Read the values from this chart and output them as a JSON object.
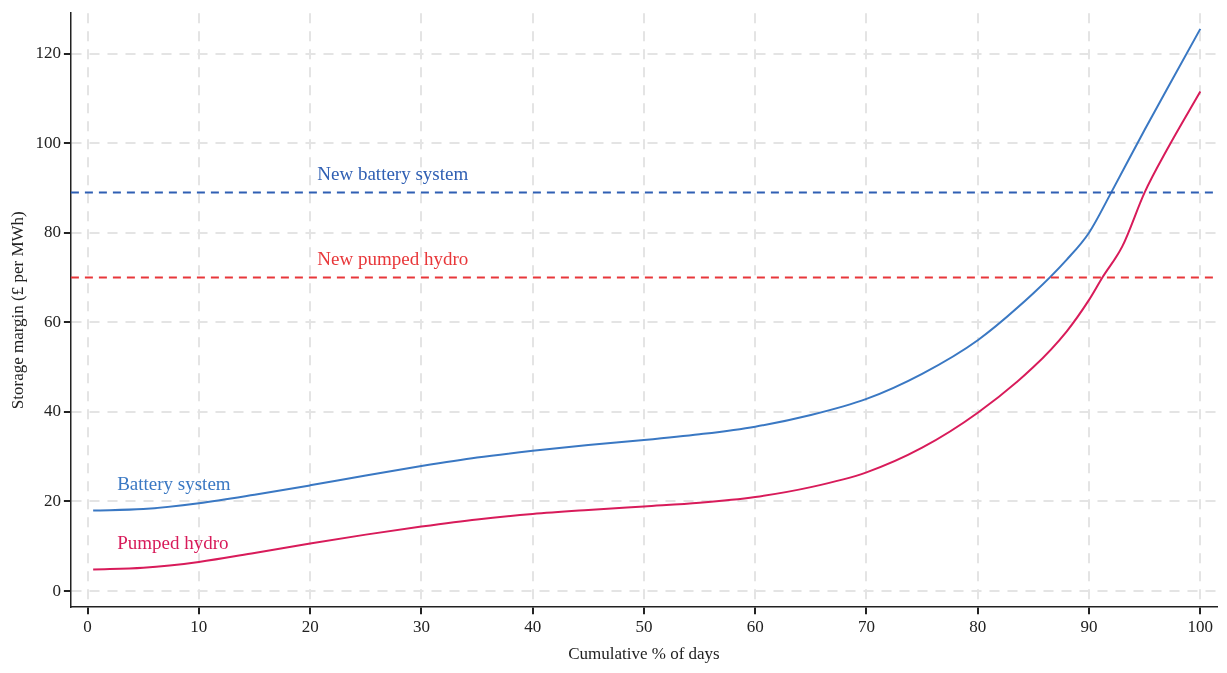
{
  "chart_data": {
    "type": "line",
    "xlabel": "Cumulative % of days",
    "ylabel": "Storage margin (£ per MWh)",
    "series": [
      {
        "name": "Battery system",
        "color": "#3a78c3",
        "x": [
          0.5,
          5,
          10,
          15,
          20,
          25,
          30,
          35,
          40,
          45,
          50,
          55,
          60,
          65,
          70,
          75,
          80,
          85,
          88,
          90,
          92,
          95,
          97,
          100
        ],
        "values": [
          18,
          18.3,
          19.6,
          21.5,
          23.6,
          25.8,
          27.9,
          29.8,
          31.3,
          32.6,
          33.7,
          35,
          36.7,
          39.3,
          42.9,
          48.5,
          56,
          66.5,
          74,
          80,
          89,
          103,
          112,
          125.5
        ]
      },
      {
        "name": "Pumped hydro",
        "color": "#d81b5a",
        "x": [
          0.5,
          5,
          10,
          15,
          20,
          25,
          30,
          35,
          40,
          45,
          50,
          55,
          60,
          65,
          70,
          75,
          80,
          85,
          88,
          90,
          91.2,
          93,
          95,
          97,
          100
        ],
        "values": [
          4.8,
          5.2,
          6.5,
          8.5,
          10.6,
          12.6,
          14.4,
          16,
          17.2,
          18.1,
          18.9,
          19.7,
          21,
          23.2,
          26.5,
          32,
          39.8,
          50,
          58,
          65,
          70,
          77,
          89,
          98.5,
          111.5
        ]
      }
    ],
    "ref_lines": [
      {
        "axis": "y",
        "value": 89,
        "label": "New battery system",
        "color": "#2f5fb3",
        "line_style": "dashed"
      },
      {
        "axis": "y",
        "value": 70,
        "label": "New pumped hydro",
        "color": "#e8373a",
        "line_style": "dashed"
      }
    ],
    "xlim": [
      -1.5,
      101.5
    ],
    "ylim": [
      -3.6,
      129
    ],
    "xticks": [
      0,
      10,
      20,
      30,
      40,
      50,
      60,
      70,
      80,
      90,
      100
    ],
    "yticks": [
      0,
      20,
      40,
      60,
      80,
      100,
      120
    ],
    "grid": true,
    "legend": false,
    "marker": "none",
    "line_style": "solid"
  }
}
